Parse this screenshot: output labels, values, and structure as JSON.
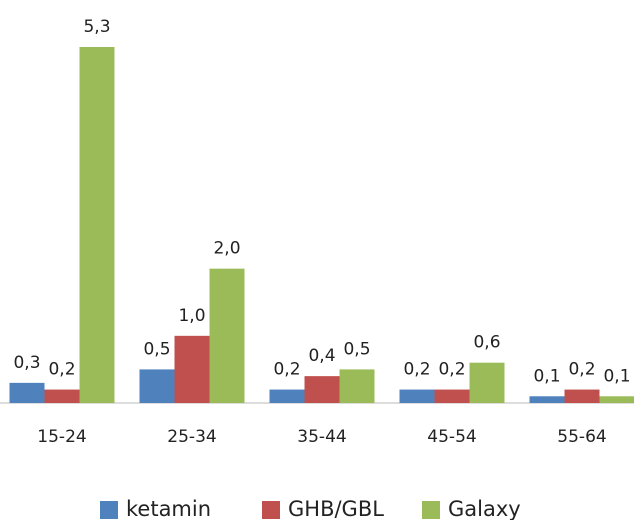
{
  "chart_data": {
    "type": "bar",
    "categories": [
      "15-24",
      "25-34",
      "35-44",
      "45-54",
      "55-64"
    ],
    "series": [
      {
        "name": "ketamin",
        "color": "#4f81bd",
        "values": [
          0.3,
          0.5,
          0.2,
          0.2,
          0.1
        ],
        "value_labels": [
          "0,3",
          "0,5",
          "0,2",
          "0,2",
          "0,1"
        ]
      },
      {
        "name": "GHB/GBL",
        "color": "#c0504d",
        "values": [
          0.2,
          1.0,
          0.4,
          0.2,
          0.2
        ],
        "value_labels": [
          "0,2",
          "1,0",
          "0,4",
          "0,2",
          "0,2"
        ]
      },
      {
        "name": "Galaxy",
        "color": "#9bbb59",
        "values": [
          5.3,
          2.0,
          0.5,
          0.6,
          0.1
        ],
        "value_labels": [
          "5,3",
          "2,0",
          "0,5",
          "0,6",
          "0,1"
        ]
      }
    ],
    "legend": "bottom"
  }
}
